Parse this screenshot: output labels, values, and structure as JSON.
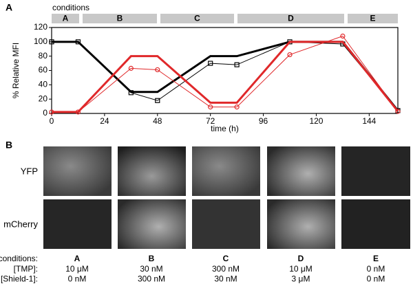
{
  "panel_labels": [
    "A",
    "B"
  ],
  "chart_data": {
    "type": "line",
    "y_label": "% Relative MFI",
    "x_label": "time (h)",
    "x": [
      0,
      12,
      36,
      48,
      72,
      84,
      108,
      132,
      157
    ],
    "series": [
      {
        "color": "#000000",
        "width": 3,
        "marker": null,
        "values": [
          100,
          100,
          30,
          30,
          80,
          80,
          100,
          100,
          4
        ]
      },
      {
        "color": "#000000",
        "width": 1,
        "marker": "square",
        "values": [
          100,
          100,
          29,
          18,
          70,
          68,
          100,
          97,
          4
        ]
      },
      {
        "color": "#e0282a",
        "width": 3,
        "marker": null,
        "values": [
          2,
          2,
          80,
          80,
          15,
          15,
          100,
          100,
          3
        ]
      },
      {
        "color": "#e0282a",
        "width": 1,
        "marker": "circle",
        "values": [
          2,
          2,
          63,
          61,
          9,
          9,
          82,
          108,
          3
        ]
      }
    ],
    "xlim": [
      0,
      157
    ],
    "ylim": [
      0,
      120
    ],
    "xticks": [
      0,
      24,
      48,
      72,
      96,
      120,
      144
    ],
    "yticks": [
      0,
      20,
      40,
      60,
      80,
      100,
      120
    ]
  },
  "condition_bars": {
    "title": "conditions",
    "labels": [
      "A",
      "B",
      "C",
      "D",
      "E"
    ]
  },
  "image_rows": [
    "YFP",
    "mCherry"
  ],
  "conditions_table": {
    "header": "conditions:",
    "columns": [
      "A",
      "B",
      "C",
      "D",
      "E"
    ],
    "rows": [
      {
        "label": "[TMP]:",
        "values": [
          "10 μM",
          "30 nM",
          "300 nM",
          "10 μM",
          "0 nM"
        ]
      },
      {
        "label": "[Shield-1]:",
        "values": [
          "0 nM",
          "300 nM",
          "30 nM",
          "3 μM",
          "0 nM"
        ]
      }
    ]
  }
}
